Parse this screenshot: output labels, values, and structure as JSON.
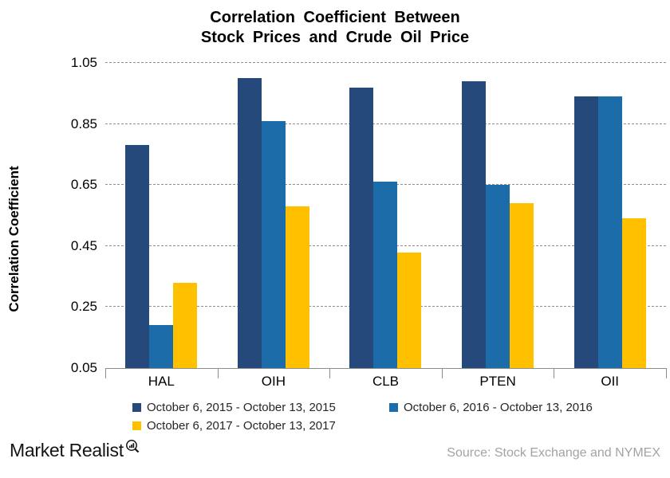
{
  "title": {
    "line1": "Correlation Coefficient Between",
    "line2": "Stock Prices and Crude Oil Price"
  },
  "footer": {
    "logo": "Market Realist",
    "logo_icon": "magnifier-bar-chart-icon",
    "source": "Source: Stock Exchange and NYMEX"
  },
  "colors": {
    "series_2015": "#24497A",
    "series_2016": "#1B6CA8",
    "series_2017": "#FFC000",
    "gridline": "#8f8f8f",
    "axis": "#8c8c8c",
    "source_text": "#a3a3a3"
  },
  "chart_data": {
    "type": "bar",
    "title": "Correlation Coefficient Between Stock Prices and Crude Oil Price",
    "categories": [
      "HAL",
      "OIH",
      "CLB",
      "PTEN",
      "OII"
    ],
    "series": [
      {
        "name": "October 6, 2015 - October 13, 2015",
        "color": "#24497A",
        "values": [
          0.78,
          1.0,
          0.97,
          0.99,
          0.94
        ]
      },
      {
        "name": "October 6, 2016 - October 13, 2016",
        "color": "#1B6CA8",
        "values": [
          0.19,
          0.86,
          0.66,
          0.65,
          0.94
        ]
      },
      {
        "name": "October 6, 2017 - October 13, 2017",
        "color": "#FFC000",
        "values": [
          0.33,
          0.58,
          0.43,
          0.59,
          0.54
        ]
      }
    ],
    "xlabel": "",
    "ylabel": "Correlation Coefficient",
    "yticks": [
      1.05,
      0.85,
      0.65,
      0.45,
      0.25,
      0.05
    ],
    "ylim": [
      0.05,
      1.05
    ],
    "grid": "horizontal-dashed",
    "legend_position": "bottom"
  }
}
